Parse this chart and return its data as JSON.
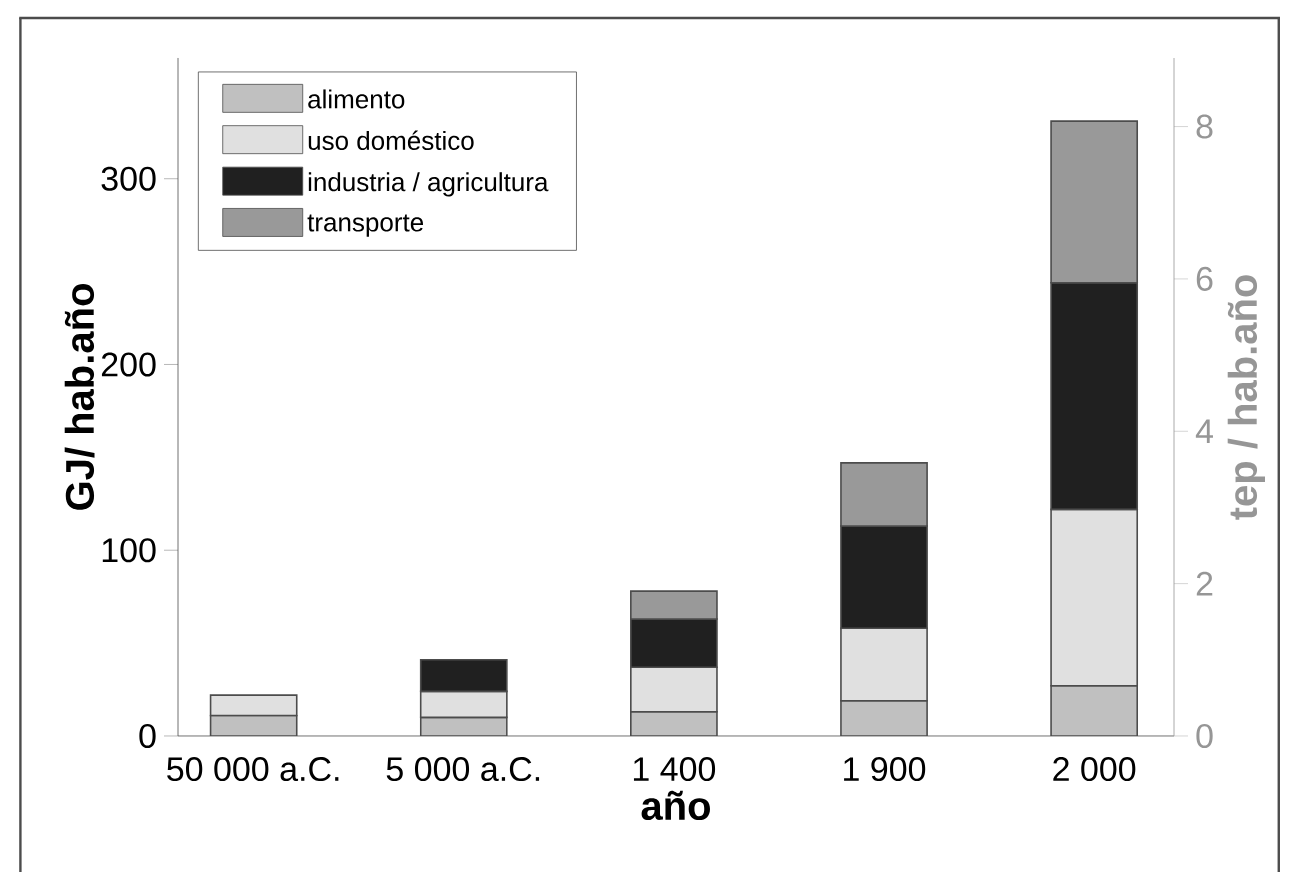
{
  "chart_data": {
    "type": "bar",
    "stacked": true,
    "xlabel": "año",
    "ylabel": "GJ/ hab.año",
    "y2label": "tep / hab.año",
    "categories": [
      "50 000 a.C.",
      "5 000 a.C.",
      "1 400",
      "1 900",
      "2 000"
    ],
    "series": [
      {
        "name": "alimento",
        "color": "#c0c0c0",
        "values": [
          11,
          10,
          13,
          19,
          27
        ]
      },
      {
        "name": "uso doméstico",
        "color": "#e0e0e0",
        "values": [
          11,
          14,
          24,
          39,
          95
        ]
      },
      {
        "name": "industria / agricultura",
        "color": "#202020",
        "values": [
          null,
          17,
          26,
          55,
          122
        ]
      },
      {
        "name": "transporte",
        "color": "#999999",
        "values": [
          null,
          null,
          15,
          34,
          87
        ]
      }
    ],
    "ylim": [
      0,
      365
    ],
    "yticks": [
      0,
      100,
      200,
      300
    ],
    "y2lim": [
      0,
      8.9
    ],
    "y2ticks": [
      0,
      2,
      4,
      6,
      8
    ],
    "legend": "top left"
  }
}
